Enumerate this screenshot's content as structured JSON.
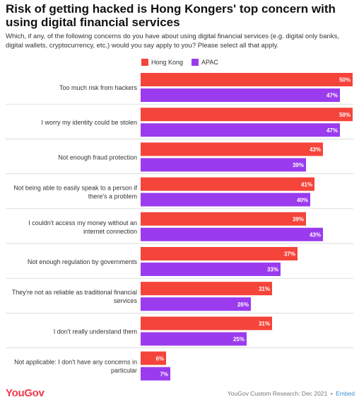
{
  "header": {
    "title": "Risk of getting hacked is Hong Kongers' top concern with using digital financial services",
    "subtitle": "Which, if any, of the following concerns do you have about using digital financial services (e.g. digital only banks, digital wallets, cryptocurrency, etc.) would you say apply to you? Please select all that apply."
  },
  "footer": {
    "logo": "YouGov",
    "source": "YouGov Custom Research: Dec 2021",
    "separator": "•",
    "embed_label": "Embed"
  },
  "colors": {
    "hong_kong": "#f5443a",
    "apac": "#9b3bee",
    "divider": "#cfcfcf",
    "label_text": "#333333"
  },
  "chart_data": {
    "type": "bar",
    "orientation": "horizontal",
    "categories": [
      "Too much risk from hackers",
      "I worry my identity could be stolen",
      "Not enough fraud protection",
      "Not being able to easily speak to a person if there's a problem",
      "I couldn't access my money without an internet connection",
      "Not enough regulation by governments",
      "They're not as reliable as traditional financial services",
      "I don't really understand them",
      "Not applicable: I don't have any concerns in particular"
    ],
    "category_lines": [
      [
        "Too much risk from hackers"
      ],
      [
        "I worry my identity could be stolen"
      ],
      [
        "Not enough fraud protection"
      ],
      [
        "Not being able to easily speak to a person if",
        "there's a problem"
      ],
      [
        "I couldn't access my money without an",
        "internet connection"
      ],
      [
        "Not enough regulation by governments"
      ],
      [
        "They're not as reliable as traditional financial",
        "services"
      ],
      [
        "I don't really understand them"
      ],
      [
        "Not applicable: I don't have any concerns in",
        "particular"
      ]
    ],
    "series": [
      {
        "name": "Hong Kong",
        "values": [
          50,
          50,
          43,
          41,
          39,
          37,
          31,
          31,
          6
        ]
      },
      {
        "name": "APAC",
        "values": [
          47,
          47,
          39,
          40,
          43,
          33,
          26,
          25,
          7
        ]
      }
    ],
    "value_suffix": "%",
    "xlim": [
      0,
      50
    ],
    "legend_position": "top",
    "grid": false
  }
}
